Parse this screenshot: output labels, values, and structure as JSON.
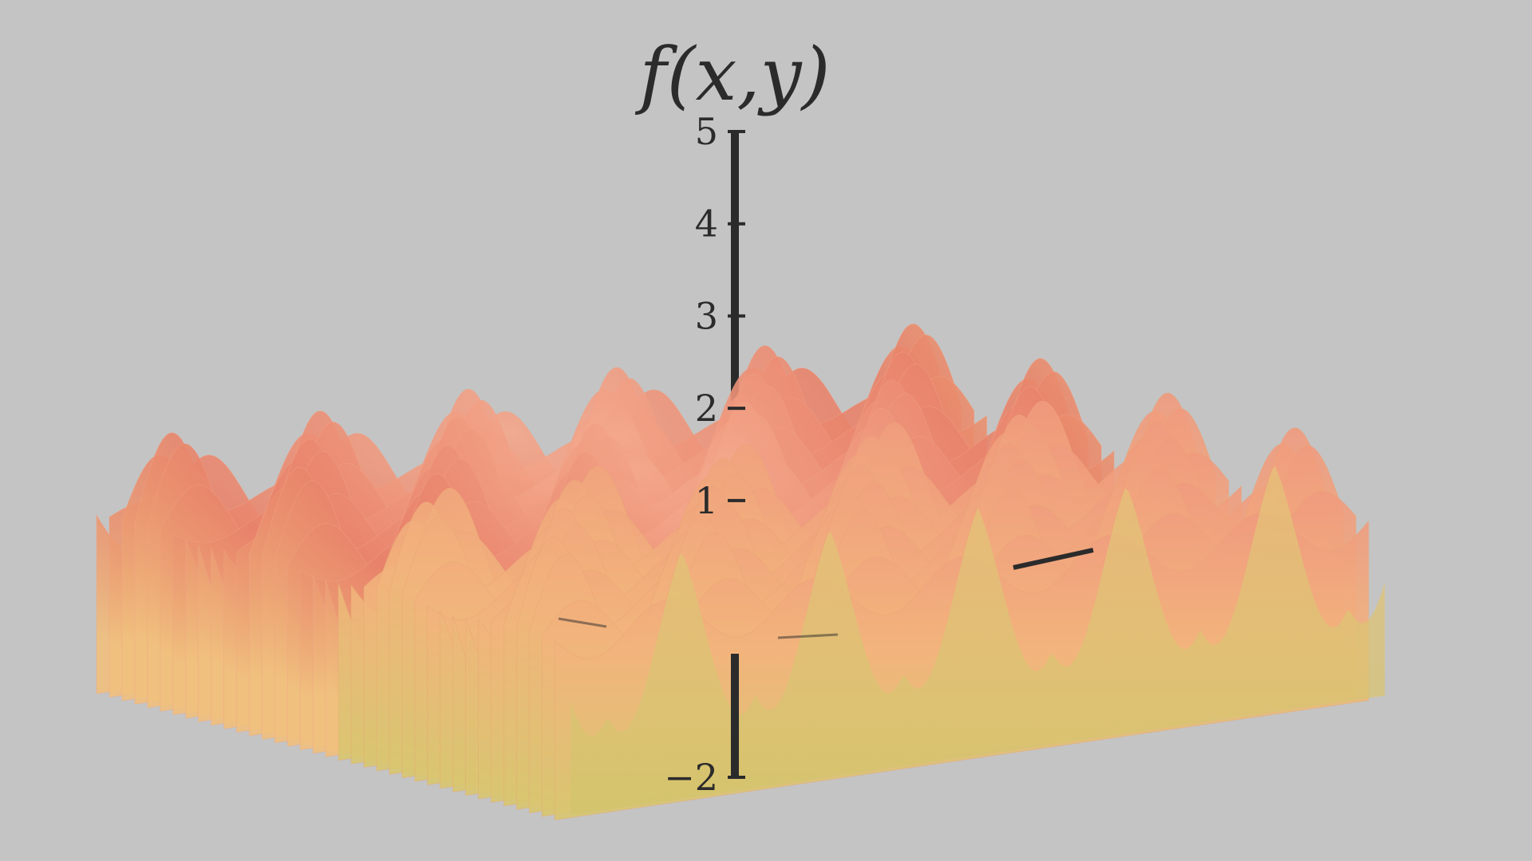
{
  "chart_data": {
    "type": "surface",
    "title": "",
    "zlabel": "f(x,y)",
    "zlim": [
      -2,
      5
    ],
    "z_ticks": [
      {
        "value": 5,
        "label": "5"
      },
      {
        "value": 4,
        "label": "4"
      },
      {
        "value": 3,
        "label": "3"
      },
      {
        "value": 2,
        "label": "2"
      },
      {
        "value": 1,
        "label": "1"
      },
      {
        "value": -2,
        "label": "−2"
      }
    ],
    "surface": {
      "approx_max": 1.8,
      "approx_min": -1.6,
      "colors": {
        "peak": "#f09a7e",
        "mid": "#f2b47c",
        "trough": "#d8c670"
      }
    },
    "axis_color": "#2b2b2b",
    "background": "#c4c4c4"
  }
}
